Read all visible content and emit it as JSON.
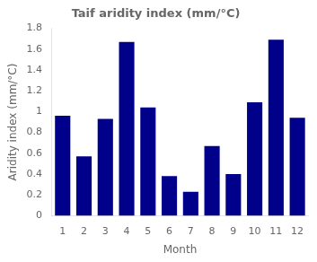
{
  "chart_data": {
    "type": "bar",
    "title": "Taif aridity index (mm/°C)",
    "xlabel": "Month",
    "ylabel": "Aridity index (mm/°C)",
    "x": [
      1,
      2,
      3,
      4,
      5,
      6,
      7,
      8,
      9,
      10,
      11,
      12
    ],
    "values": [
      0.96,
      0.57,
      0.93,
      1.67,
      1.04,
      0.38,
      0.23,
      0.67,
      0.4,
      1.09,
      1.69,
      0.94
    ],
    "color": "#00008B",
    "xlim": [
      0.5,
      12.5
    ],
    "xticks": [
      1,
      2,
      3,
      4,
      5,
      6,
      7,
      8,
      9,
      10,
      11,
      12
    ],
    "ylim": [
      0,
      1.8
    ],
    "yticks": [
      0,
      0.2,
      0.4,
      0.6,
      0.8,
      1.0,
      1.2,
      1.4,
      1.6,
      1.8
    ],
    "grid": false
  }
}
